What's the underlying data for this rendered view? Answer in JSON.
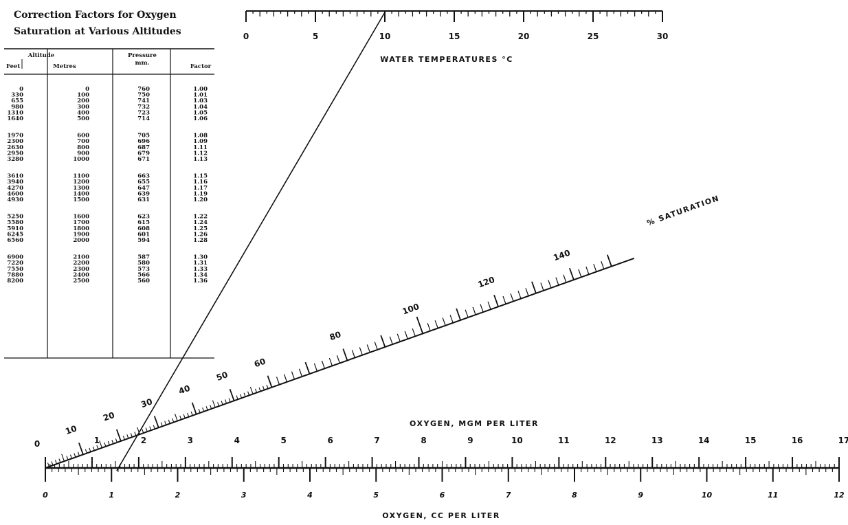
{
  "table": {
    "title_line1": "Correction Factors for Oxygen",
    "title_line2": "Saturation at Various Altitudes",
    "header_group": "Altitude",
    "columns": [
      "Feet",
      "Metres",
      "Pressure mm.",
      "Factor"
    ],
    "column_head_pressure_l1": "Pressure",
    "column_head_pressure_l2": "mm.",
    "groups": [
      [
        [
          "0",
          "0",
          "760",
          "1.00"
        ],
        [
          "330",
          "100",
          "750",
          "1.01"
        ],
        [
          "655",
          "200",
          "741",
          "1.03"
        ],
        [
          "980",
          "300",
          "732",
          "1.04"
        ],
        [
          "1310",
          "400",
          "723",
          "1.05"
        ],
        [
          "1640",
          "500",
          "714",
          "1.06"
        ]
      ],
      [
        [
          "1970",
          "600",
          "705",
          "1.08"
        ],
        [
          "2300",
          "700",
          "696",
          "1.09"
        ],
        [
          "2630",
          "800",
          "687",
          "1.11"
        ],
        [
          "2950",
          "900",
          "679",
          "1.12"
        ],
        [
          "3280",
          "1000",
          "671",
          "1.13"
        ]
      ],
      [
        [
          "3610",
          "1100",
          "663",
          "1.15"
        ],
        [
          "3940",
          "1200",
          "655",
          "1.16"
        ],
        [
          "4270",
          "1300",
          "647",
          "1.17"
        ],
        [
          "4600",
          "1400",
          "639",
          "1.19"
        ],
        [
          "4930",
          "1500",
          "631",
          "1.20"
        ]
      ],
      [
        [
          "5250",
          "1600",
          "623",
          "1.22"
        ],
        [
          "5580",
          "1700",
          "615",
          "1.24"
        ],
        [
          "5910",
          "1800",
          "608",
          "1.25"
        ],
        [
          "6245",
          "1900",
          "601",
          "1.26"
        ],
        [
          "6560",
          "2000",
          "594",
          "1.28"
        ]
      ],
      [
        [
          "6900",
          "2100",
          "587",
          "1.30"
        ],
        [
          "7220",
          "2200",
          "580",
          "1.31"
        ],
        [
          "7550",
          "2300",
          "573",
          "1.33"
        ],
        [
          "7880",
          "2400",
          "566",
          "1.34"
        ],
        [
          "8200",
          "2500",
          "560",
          "1.36"
        ]
      ]
    ]
  },
  "chart_data": {
    "type": "nomogram",
    "scales": {
      "water_temperature": {
        "label": "WATER TEMPERATURES °C",
        "range": [
          0,
          30
        ],
        "major_labels": [
          "0",
          "5",
          "10",
          "15",
          "20",
          "25",
          "30"
        ]
      },
      "saturation": {
        "label": "% SATURATION",
        "range": [
          0,
          150
        ],
        "major_labels": [
          "10",
          "20",
          "30",
          "40",
          "50",
          "60",
          "80",
          "100",
          "120",
          "140"
        ]
      },
      "oxygen_mgm": {
        "label": "OXYGEN, MGM PER LITER",
        "range": [
          0,
          17
        ],
        "major_labels": [
          "0",
          "1",
          "2",
          "3",
          "4",
          "5",
          "6",
          "7",
          "8",
          "9",
          "10",
          "11",
          "12",
          "13",
          "14",
          "15",
          "16",
          "17"
        ]
      },
      "oxygen_cc": {
        "label": "OXYGEN, CC PER LITER",
        "range": [
          0,
          12
        ],
        "major_labels": [
          "0",
          "1",
          "2",
          "3",
          "4",
          "5",
          "6",
          "7",
          "8",
          "9",
          "10",
          "11",
          "12"
        ]
      }
    },
    "example_line": {
      "temperature_c": 10,
      "oxygen_cc_per_liter": 1.1
    }
  }
}
